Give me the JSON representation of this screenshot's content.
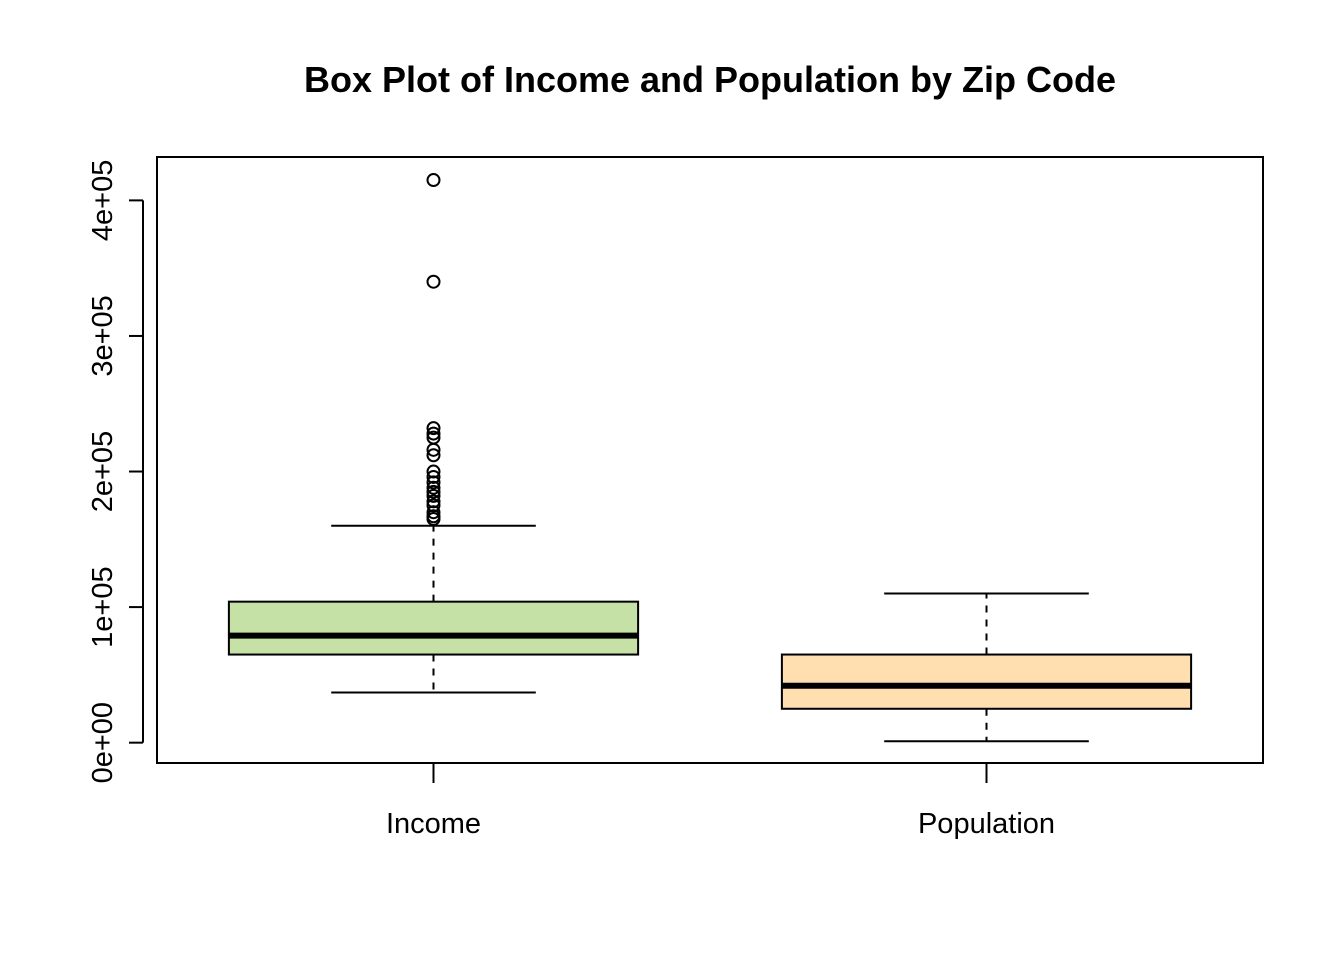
{
  "chart_data": {
    "type": "boxplot",
    "title": "Box Plot of Income and Population by Zip Code",
    "xlabel": "",
    "ylabel": "",
    "ylim": [
      -15000,
      432000
    ],
    "y_ticks": [
      0,
      100000,
      200000,
      300000,
      400000
    ],
    "y_tick_labels": [
      "0e+00",
      "1e+05",
      "2e+05",
      "3e+05",
      "4e+05"
    ],
    "grid": false,
    "categories": [
      "Income",
      "Population"
    ],
    "series": [
      {
        "category": "Income",
        "color": "#c6e1a6",
        "whisker_low": 37000,
        "q1": 65000,
        "median": 79000,
        "q3": 104000,
        "whisker_high": 160000,
        "outliers": [
          415000,
          340000,
          232000,
          228000,
          225000,
          216000,
          212000,
          200000,
          196000,
          192000,
          188000,
          185000,
          182000,
          178000,
          175000,
          170000,
          167000,
          165000
        ]
      },
      {
        "category": "Population",
        "color": "#ffdfb0",
        "whisker_low": 1000,
        "q1": 25000,
        "median": 42000,
        "q3": 65000,
        "whisker_high": 110000,
        "outliers": []
      }
    ]
  }
}
